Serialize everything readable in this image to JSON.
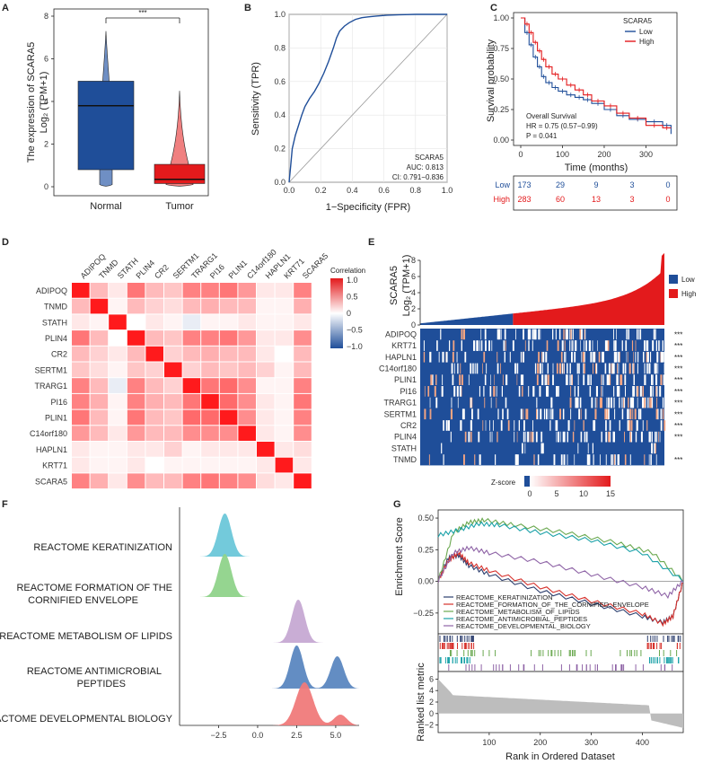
{
  "panels": {
    "a": {
      "label": "A",
      "ylabel_line1": "The expression of SCARA5",
      "ylabel_line2": "Log₂ (TPM+1)",
      "categories": [
        "Normal",
        "Tumor"
      ],
      "yticks": [
        "0",
        "2",
        "4",
        "6",
        "8"
      ],
      "significance": "***",
      "colors": [
        "#1f4e99",
        "#e31a1c"
      ],
      "chart_data": {
        "type": "box",
        "categories": [
          "Normal",
          "Tumor"
        ],
        "ylim": [
          0,
          8
        ],
        "boxes": [
          {
            "q1": 0.8,
            "median": 3.8,
            "q3": 4.95,
            "min": 0.0,
            "max": 7.3
          },
          {
            "q1": 0.15,
            "median": 0.35,
            "q3": 1.05,
            "min": 0.0,
            "max": 4.5
          }
        ]
      }
    },
    "b": {
      "label": "B",
      "xlabel": "1−Specificity (FPR)",
      "ylabel": "Sensitivity (TPR)",
      "ticks": [
        "0.0",
        "0.2",
        "0.4",
        "0.6",
        "0.8",
        "1.0"
      ],
      "legend_name": "SCARA5",
      "auc_text": "AUC: 0.813",
      "ci_text": "CI: 0.791−0.836",
      "chart_data": {
        "type": "line",
        "xlim": [
          0,
          1
        ],
        "ylim": [
          0,
          1
        ],
        "x": [
          0,
          0.01,
          0.02,
          0.04,
          0.06,
          0.08,
          0.1,
          0.13,
          0.16,
          0.19,
          0.22,
          0.25,
          0.28,
          0.3,
          0.32,
          0.35,
          0.38,
          0.42,
          0.46,
          0.5,
          0.55,
          0.62,
          0.7,
          0.8,
          0.9,
          1.0
        ],
        "y": [
          0,
          0.1,
          0.2,
          0.28,
          0.34,
          0.4,
          0.45,
          0.5,
          0.54,
          0.59,
          0.65,
          0.72,
          0.8,
          0.86,
          0.9,
          0.93,
          0.95,
          0.97,
          0.98,
          0.985,
          0.99,
          0.995,
          0.998,
          1.0,
          1.0,
          1.0
        ]
      }
    },
    "c": {
      "label": "C",
      "ylabel": "Survival probability",
      "xlabel": "Time (months)",
      "legend_title": "SCARA5",
      "legend": [
        "Low",
        "High"
      ],
      "colors": [
        "#1f4e99",
        "#e31a1c"
      ],
      "xticks": [
        "0",
        "100",
        "200",
        "300"
      ],
      "yticks": [
        "0.00",
        "0.25",
        "0.50",
        "0.75",
        "1.00"
      ],
      "os_text": "Overall Survival",
      "hr_text": "HR = 0.75 (0.57−0.99)",
      "p_text": "P = 0.041",
      "risk_table": {
        "rows": [
          {
            "name": "Low",
            "values": [
              "173",
              "29",
              "9",
              "3",
              "0"
            ]
          },
          {
            "name": "High",
            "values": [
              "283",
              "60",
              "13",
              "3",
              "0"
            ]
          }
        ]
      },
      "chart_data": {
        "type": "line",
        "xlim": [
          0,
          370
        ],
        "ylim": [
          0,
          1
        ],
        "series": [
          {
            "name": "Low",
            "x": [
              0,
              10,
              20,
              30,
              40,
              50,
              60,
              75,
              90,
              110,
              130,
              150,
              170,
              200,
              230,
              260,
              300,
              340,
              360
            ],
            "y": [
              1,
              0.88,
              0.78,
              0.68,
              0.6,
              0.52,
              0.47,
              0.43,
              0.4,
              0.37,
              0.35,
              0.33,
              0.3,
              0.25,
              0.2,
              0.17,
              0.15,
              0.12,
              0.05
            ]
          },
          {
            "name": "High",
            "x": [
              0,
              10,
              20,
              30,
              40,
              50,
              60,
              75,
              90,
              110,
              130,
              150,
              170,
              200,
              230,
              260,
              300,
              340,
              360
            ],
            "y": [
              1,
              0.95,
              0.88,
              0.8,
              0.73,
              0.66,
              0.6,
              0.54,
              0.5,
              0.45,
              0.41,
              0.37,
              0.32,
              0.28,
              0.22,
              0.18,
              0.12,
              0.1,
              0.1
            ]
          }
        ]
      }
    },
    "d": {
      "label": "D",
      "genes": [
        "ADIPOQ",
        "TNMD",
        "STATH",
        "PLIN4",
        "CR2",
        "SERTM1",
        "TRARG1",
        "PI16",
        "PLIN1",
        "C14orf180",
        "HAPLN1",
        "KRT71",
        "SCARA5"
      ],
      "legend_title": "Correlation",
      "legend_ticks": [
        "1.0",
        "0.5",
        "0",
        "−0.5",
        "−1.0"
      ],
      "chart_data": {
        "type": "heatmap",
        "rows": [
          "ADIPOQ",
          "TNMD",
          "STATH",
          "PLIN4",
          "CR2",
          "SERTM1",
          "TRARG1",
          "PI16",
          "PLIN1",
          "C14orf180",
          "HAPLN1",
          "KRT71",
          "SCARA5"
        ],
        "cols": [
          "ADIPOQ",
          "TNMD",
          "STATH",
          "PLIN4",
          "CR2",
          "SERTM1",
          "TRARG1",
          "PI16",
          "PLIN1",
          "C14orf180",
          "HAPLN1",
          "KRT71",
          "SCARA5"
        ],
        "values": [
          [
            1.0,
            0.3,
            0.1,
            0.6,
            0.3,
            0.25,
            0.55,
            0.55,
            0.6,
            0.45,
            0.1,
            0.1,
            0.55
          ],
          [
            0.3,
            1.0,
            0.05,
            0.3,
            0.2,
            0.15,
            0.3,
            0.35,
            0.3,
            0.3,
            0.05,
            0.05,
            0.35
          ],
          [
            0.1,
            0.05,
            1.0,
            0.0,
            0.1,
            0.05,
            -0.1,
            0.05,
            0.05,
            0.1,
            0.05,
            0.05,
            0.1
          ],
          [
            0.6,
            0.3,
            0.0,
            1.0,
            0.3,
            0.25,
            0.55,
            0.55,
            0.6,
            0.45,
            0.1,
            0.1,
            0.5
          ],
          [
            0.3,
            0.2,
            0.1,
            0.3,
            1.0,
            0.2,
            0.3,
            0.35,
            0.3,
            0.3,
            0.1,
            0.0,
            0.3
          ],
          [
            0.25,
            0.15,
            0.05,
            0.25,
            0.2,
            1.0,
            0.2,
            0.3,
            0.25,
            0.3,
            0.2,
            0.05,
            0.3
          ],
          [
            0.55,
            0.3,
            -0.1,
            0.55,
            0.3,
            0.2,
            1.0,
            0.6,
            0.65,
            0.5,
            0.05,
            0.05,
            0.55
          ],
          [
            0.55,
            0.35,
            0.05,
            0.55,
            0.35,
            0.3,
            0.6,
            1.0,
            0.65,
            0.5,
            0.1,
            0.05,
            0.6
          ],
          [
            0.6,
            0.3,
            0.05,
            0.6,
            0.3,
            0.25,
            0.65,
            0.65,
            1.0,
            0.5,
            0.1,
            0.05,
            0.55
          ],
          [
            0.45,
            0.3,
            0.1,
            0.45,
            0.3,
            0.3,
            0.5,
            0.5,
            0.5,
            1.0,
            0.1,
            0.05,
            0.5
          ],
          [
            0.1,
            0.05,
            0.05,
            0.1,
            0.1,
            0.2,
            0.05,
            0.1,
            0.1,
            0.1,
            1.0,
            0.1,
            0.15
          ],
          [
            0.1,
            0.05,
            0.05,
            0.1,
            0.0,
            0.05,
            0.05,
            0.05,
            0.05,
            0.05,
            0.1,
            1.0,
            0.1
          ],
          [
            0.55,
            0.35,
            0.1,
            0.5,
            0.3,
            0.3,
            0.55,
            0.6,
            0.55,
            0.5,
            0.15,
            0.1,
            1.0
          ]
        ]
      }
    },
    "e": {
      "label": "E",
      "ylabel_line1": "SCARA5",
      "ylabel_line2": "Log₂ (TPM+1)",
      "legend": [
        "Low",
        "High"
      ],
      "colors": [
        "#1f4e99",
        "#e31a1c"
      ],
      "yticks": [
        "0",
        "2",
        "4",
        "6",
        "8"
      ],
      "genes": [
        "ADIPOQ",
        "KRT71",
        "HAPLN1",
        "C14orf180",
        "PLIN1",
        "PI16",
        "TRARG1",
        "SERTM1",
        "CR2",
        "PLIN4",
        "STATH",
        "TNMD"
      ],
      "stars": [
        "***",
        "***",
        "***",
        "***",
        "***",
        "***",
        "***",
        "***",
        "***",
        "***",
        "",
        "***"
      ],
      "zscore_label": "Z-score",
      "zscore_ticks": [
        "0",
        "5",
        "10",
        "15"
      ]
    },
    "f": {
      "label": "F",
      "pathways": [
        "REACTOME KERATINIZATION",
        "REACTOME FORMATION OF THE",
        "CORNIFIED ENVELOPE",
        "REACTOME METABOLISM OF LIPIDS",
        "REACTOME ANTIMICROBIAL",
        "PEPTIDES",
        "REACTOME DEVELOPMENTAL BIOLOGY"
      ],
      "xticks": [
        "−2.5",
        "0.0",
        "2.5",
        "5.0"
      ],
      "colors": [
        "#6cc7d9",
        "#8fd38a",
        "#c6a9d3",
        "#5b87c0",
        "#f07a7a"
      ],
      "chart_data": {
        "type": "ridgeline",
        "xlim": [
          -5,
          6.5
        ],
        "series": [
          {
            "name": "REACTOME KERATINIZATION",
            "peaks": [
              -2.1
            ]
          },
          {
            "name": "REACTOME FORMATION OF THE CORNIFIED ENVELOPE",
            "peaks": [
              -2.1
            ]
          },
          {
            "name": "REACTOME METABOLISM OF LIPIDS",
            "peaks": [
              2.6
            ]
          },
          {
            "name": "REACTOME ANTIMICROBIAL PEPTIDES",
            "peaks": [
              2.5,
              5.1
            ]
          },
          {
            "name": "REACTOME DEVELOPMENTAL BIOLOGY",
            "peaks": [
              3.0,
              5.3
            ]
          }
        ]
      }
    },
    "g": {
      "label": "G",
      "ylabel_top": "Enrichment Score",
      "ylabel_bottom": "Ranked list metric",
      "xlabel": "Rank in Ordered Dataset",
      "legend": [
        "REACTOME_KERATINIZATION",
        "REACTOME_FORMATION_OF_THE_CORNIFIED_ENVELOPE",
        "REACTOME_METABOLISM_OF_LIPIDS",
        "REACTOME_ANTIMICROBIAL_PEPTIDES",
        "REACTOME_DEVELOPMENTAL_BIOLOGY"
      ],
      "colors": [
        "#2c3e6e",
        "#d6312c",
        "#6aa84f",
        "#1aa1a8",
        "#8e63a6"
      ],
      "es_ticks": [
        "0.50",
        "0.25",
        "0.00",
        "−0.25"
      ],
      "rank_ticks": [
        "6",
        "4",
        "2",
        "0",
        "−2"
      ],
      "xticks": [
        "100",
        "200",
        "300",
        "400"
      ],
      "chart_data": {
        "type": "line",
        "xlim": [
          0,
          480
        ],
        "ylim": [
          -0.4,
          0.55
        ],
        "series": [
          {
            "name": "REACTOME_KERATINIZATION",
            "x": [
              0,
              20,
              40,
              60,
              100,
              200,
              300,
              400,
              440,
              460,
              480
            ],
            "y": [
              0,
              0.18,
              0.2,
              0.12,
              0.05,
              -0.08,
              -0.18,
              -0.28,
              -0.33,
              -0.28,
              0
            ]
          },
          {
            "name": "REACTOME_FORMATION_OF_THE_CORNIFIED_ENVELOPE",
            "x": [
              0,
              20,
              40,
              60,
              100,
              200,
              300,
              400,
              440,
              460,
              480
            ],
            "y": [
              0,
              0.16,
              0.22,
              0.14,
              0.08,
              -0.05,
              -0.16,
              -0.26,
              -0.34,
              -0.28,
              0
            ]
          },
          {
            "name": "REACTOME_METABOLISM_OF_LIPIDS",
            "x": [
              0,
              30,
              60,
              90,
              150,
              250,
              350,
              420,
              480
            ],
            "y": [
              0,
              0.38,
              0.46,
              0.48,
              0.44,
              0.38,
              0.3,
              0.22,
              0
            ]
          },
          {
            "name": "REACTOME_ANTIMICROBIAL_PEPTIDES",
            "x": [
              0,
              40,
              80,
              120,
              200,
              300,
              400,
              480
            ],
            "y": [
              0.36,
              0.4,
              0.45,
              0.44,
              0.38,
              0.32,
              0.22,
              0
            ]
          },
          {
            "name": "REACTOME_DEVELOPMENTAL_BIOLOGY",
            "x": [
              0,
              30,
              60,
              100,
              200,
              300,
              400,
              450,
              480
            ],
            "y": [
              0,
              0.22,
              0.26,
              0.22,
              0.15,
              0.05,
              -0.05,
              -0.12,
              0
            ]
          }
        ]
      }
    }
  }
}
